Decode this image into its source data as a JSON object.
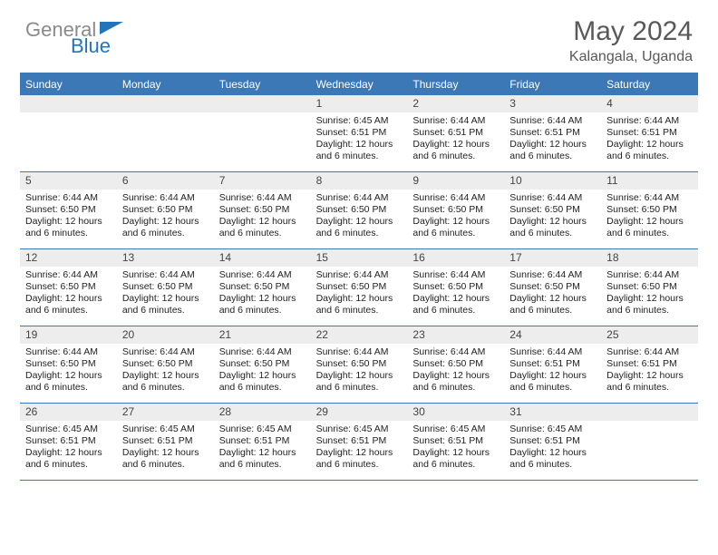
{
  "brand": {
    "text_general": "General",
    "text_blue": "Blue",
    "color_gray": "#8a8a8a",
    "color_blue": "#2474ba"
  },
  "header": {
    "month_title": "May 2024",
    "location": "Kalangala, Uganda",
    "title_color": "#595959",
    "title_fontsize": 30,
    "location_fontsize": 16
  },
  "colors": {
    "header_bg": "#3b78b5",
    "border": "#3b78b5",
    "daynum_bg": "#ededed",
    "text_dark": "#222222",
    "background": "#ffffff"
  },
  "weekdays": [
    "Sunday",
    "Monday",
    "Tuesday",
    "Wednesday",
    "Thursday",
    "Friday",
    "Saturday"
  ],
  "weeks": [
    [
      {
        "day": "",
        "sunrise": "",
        "sunset": "",
        "daylight": ""
      },
      {
        "day": "",
        "sunrise": "",
        "sunset": "",
        "daylight": ""
      },
      {
        "day": "",
        "sunrise": "",
        "sunset": "",
        "daylight": ""
      },
      {
        "day": "1",
        "sunrise": "Sunrise: 6:45 AM",
        "sunset": "Sunset: 6:51 PM",
        "daylight": "Daylight: 12 hours and 6 minutes."
      },
      {
        "day": "2",
        "sunrise": "Sunrise: 6:44 AM",
        "sunset": "Sunset: 6:51 PM",
        "daylight": "Daylight: 12 hours and 6 minutes."
      },
      {
        "day": "3",
        "sunrise": "Sunrise: 6:44 AM",
        "sunset": "Sunset: 6:51 PM",
        "daylight": "Daylight: 12 hours and 6 minutes."
      },
      {
        "day": "4",
        "sunrise": "Sunrise: 6:44 AM",
        "sunset": "Sunset: 6:51 PM",
        "daylight": "Daylight: 12 hours and 6 minutes."
      }
    ],
    [
      {
        "day": "5",
        "sunrise": "Sunrise: 6:44 AM",
        "sunset": "Sunset: 6:50 PM",
        "daylight": "Daylight: 12 hours and 6 minutes."
      },
      {
        "day": "6",
        "sunrise": "Sunrise: 6:44 AM",
        "sunset": "Sunset: 6:50 PM",
        "daylight": "Daylight: 12 hours and 6 minutes."
      },
      {
        "day": "7",
        "sunrise": "Sunrise: 6:44 AM",
        "sunset": "Sunset: 6:50 PM",
        "daylight": "Daylight: 12 hours and 6 minutes."
      },
      {
        "day": "8",
        "sunrise": "Sunrise: 6:44 AM",
        "sunset": "Sunset: 6:50 PM",
        "daylight": "Daylight: 12 hours and 6 minutes."
      },
      {
        "day": "9",
        "sunrise": "Sunrise: 6:44 AM",
        "sunset": "Sunset: 6:50 PM",
        "daylight": "Daylight: 12 hours and 6 minutes."
      },
      {
        "day": "10",
        "sunrise": "Sunrise: 6:44 AM",
        "sunset": "Sunset: 6:50 PM",
        "daylight": "Daylight: 12 hours and 6 minutes."
      },
      {
        "day": "11",
        "sunrise": "Sunrise: 6:44 AM",
        "sunset": "Sunset: 6:50 PM",
        "daylight": "Daylight: 12 hours and 6 minutes."
      }
    ],
    [
      {
        "day": "12",
        "sunrise": "Sunrise: 6:44 AM",
        "sunset": "Sunset: 6:50 PM",
        "daylight": "Daylight: 12 hours and 6 minutes."
      },
      {
        "day": "13",
        "sunrise": "Sunrise: 6:44 AM",
        "sunset": "Sunset: 6:50 PM",
        "daylight": "Daylight: 12 hours and 6 minutes."
      },
      {
        "day": "14",
        "sunrise": "Sunrise: 6:44 AM",
        "sunset": "Sunset: 6:50 PM",
        "daylight": "Daylight: 12 hours and 6 minutes."
      },
      {
        "day": "15",
        "sunrise": "Sunrise: 6:44 AM",
        "sunset": "Sunset: 6:50 PM",
        "daylight": "Daylight: 12 hours and 6 minutes."
      },
      {
        "day": "16",
        "sunrise": "Sunrise: 6:44 AM",
        "sunset": "Sunset: 6:50 PM",
        "daylight": "Daylight: 12 hours and 6 minutes."
      },
      {
        "day": "17",
        "sunrise": "Sunrise: 6:44 AM",
        "sunset": "Sunset: 6:50 PM",
        "daylight": "Daylight: 12 hours and 6 minutes."
      },
      {
        "day": "18",
        "sunrise": "Sunrise: 6:44 AM",
        "sunset": "Sunset: 6:50 PM",
        "daylight": "Daylight: 12 hours and 6 minutes."
      }
    ],
    [
      {
        "day": "19",
        "sunrise": "Sunrise: 6:44 AM",
        "sunset": "Sunset: 6:50 PM",
        "daylight": "Daylight: 12 hours and 6 minutes."
      },
      {
        "day": "20",
        "sunrise": "Sunrise: 6:44 AM",
        "sunset": "Sunset: 6:50 PM",
        "daylight": "Daylight: 12 hours and 6 minutes."
      },
      {
        "day": "21",
        "sunrise": "Sunrise: 6:44 AM",
        "sunset": "Sunset: 6:50 PM",
        "daylight": "Daylight: 12 hours and 6 minutes."
      },
      {
        "day": "22",
        "sunrise": "Sunrise: 6:44 AM",
        "sunset": "Sunset: 6:50 PM",
        "daylight": "Daylight: 12 hours and 6 minutes."
      },
      {
        "day": "23",
        "sunrise": "Sunrise: 6:44 AM",
        "sunset": "Sunset: 6:50 PM",
        "daylight": "Daylight: 12 hours and 6 minutes."
      },
      {
        "day": "24",
        "sunrise": "Sunrise: 6:44 AM",
        "sunset": "Sunset: 6:51 PM",
        "daylight": "Daylight: 12 hours and 6 minutes."
      },
      {
        "day": "25",
        "sunrise": "Sunrise: 6:44 AM",
        "sunset": "Sunset: 6:51 PM",
        "daylight": "Daylight: 12 hours and 6 minutes."
      }
    ],
    [
      {
        "day": "26",
        "sunrise": "Sunrise: 6:45 AM",
        "sunset": "Sunset: 6:51 PM",
        "daylight": "Daylight: 12 hours and 6 minutes."
      },
      {
        "day": "27",
        "sunrise": "Sunrise: 6:45 AM",
        "sunset": "Sunset: 6:51 PM",
        "daylight": "Daylight: 12 hours and 6 minutes."
      },
      {
        "day": "28",
        "sunrise": "Sunrise: 6:45 AM",
        "sunset": "Sunset: 6:51 PM",
        "daylight": "Daylight: 12 hours and 6 minutes."
      },
      {
        "day": "29",
        "sunrise": "Sunrise: 6:45 AM",
        "sunset": "Sunset: 6:51 PM",
        "daylight": "Daylight: 12 hours and 6 minutes."
      },
      {
        "day": "30",
        "sunrise": "Sunrise: 6:45 AM",
        "sunset": "Sunset: 6:51 PM",
        "daylight": "Daylight: 12 hours and 6 minutes."
      },
      {
        "day": "31",
        "sunrise": "Sunrise: 6:45 AM",
        "sunset": "Sunset: 6:51 PM",
        "daylight": "Daylight: 12 hours and 6 minutes."
      },
      {
        "day": "",
        "sunrise": "",
        "sunset": "",
        "daylight": ""
      }
    ]
  ]
}
